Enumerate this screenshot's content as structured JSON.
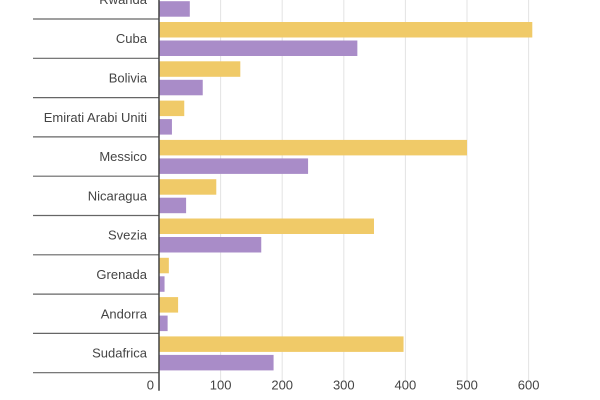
{
  "chart_data": {
    "type": "bar",
    "orientation": "horizontal",
    "categories": [
      "Rwanda",
      "Cuba",
      "Bolivia",
      "Emirati Arabi Uniti",
      "Messico",
      "Nicaragua",
      "Svezia",
      "Grenada",
      "Andorra",
      "Sudafrica"
    ],
    "series": [
      {
        "color": "#f0ca68",
        "values": [
          null,
          606,
          132,
          41,
          500,
          93,
          349,
          16,
          31,
          397
        ]
      },
      {
        "color": "#a98cc8",
        "values": [
          50,
          322,
          71,
          21,
          242,
          44,
          166,
          9,
          14,
          186
        ]
      }
    ],
    "xticks": [
      "0",
      "100",
      "200",
      "300",
      "400",
      "500",
      "600"
    ],
    "xlim": [
      0,
      600
    ],
    "grid": true,
    "title": "",
    "xlabel": "",
    "ylabel": ""
  }
}
